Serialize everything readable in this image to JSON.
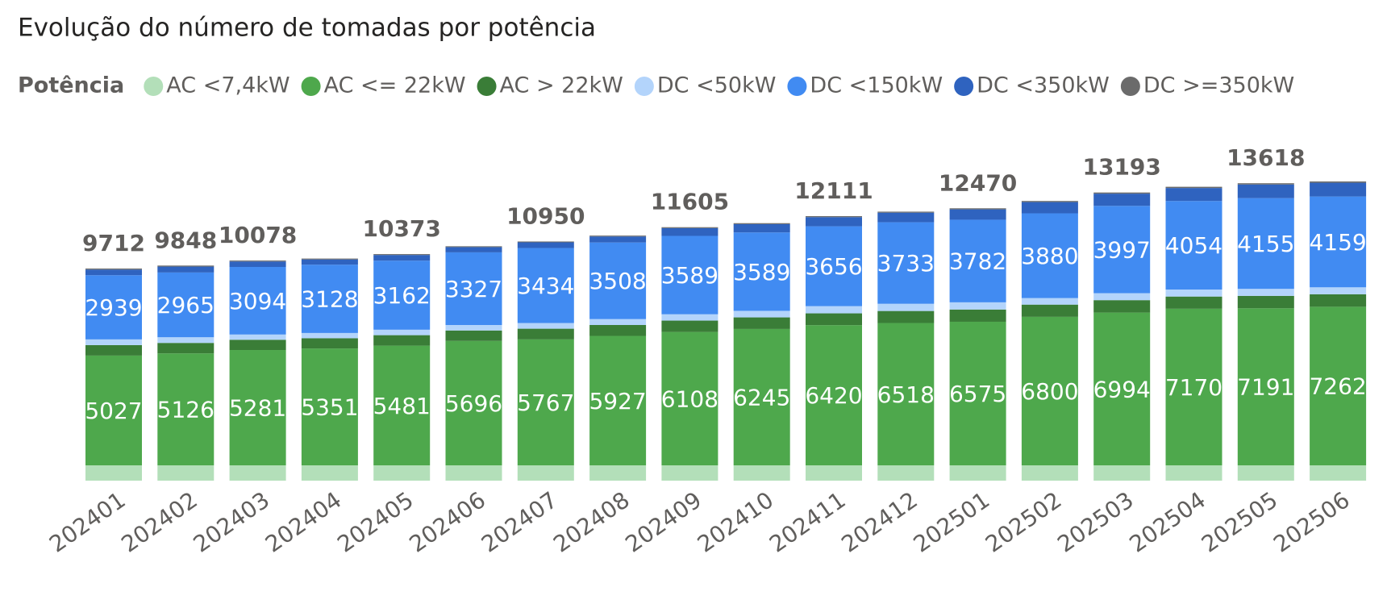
{
  "chart_data": {
    "type": "stacked_bar",
    "title": "Evolução do número de tomadas por potência",
    "legend_title": "Potência",
    "categories": [
      "202401",
      "202402",
      "202403",
      "202404",
      "202405",
      "202406",
      "202407",
      "202408",
      "202409",
      "202410",
      "202411",
      "202412",
      "202501",
      "202502",
      "202503",
      "202504",
      "202505",
      "202506"
    ],
    "series": [
      {
        "name": "AC <7,4kW",
        "color": "#b3dfb9",
        "show_values": false,
        "values": [
          700,
          700,
          700,
          700,
          700,
          700,
          700,
          700,
          700,
          700,
          700,
          700,
          700,
          700,
          700,
          700,
          700,
          700
        ]
      },
      {
        "name": "AC <= 22kW",
        "color": "#4ea84c",
        "show_values": true,
        "values": [
          5027,
          5126,
          5281,
          5351,
          5481,
          5696,
          5767,
          5927,
          6108,
          6245,
          6420,
          6518,
          6575,
          6800,
          6994,
          7170,
          7191,
          7262
        ]
      },
      {
        "name": "AC > 22kW",
        "color": "#3a7d37",
        "show_values": false,
        "values": [
          480,
          480,
          470,
          470,
          480,
          480,
          490,
          500,
          520,
          530,
          540,
          550,
          560,
          560,
          570,
          560,
          570,
          570
        ]
      },
      {
        "name": "DC <50kW",
        "color": "#b3d4fb",
        "show_values": false,
        "values": [
          260,
          260,
          240,
          240,
          250,
          250,
          260,
          270,
          290,
          300,
          330,
          330,
          330,
          300,
          320,
          320,
          320,
          320
        ]
      },
      {
        "name": "DC <150kW",
        "color": "#418bf2",
        "show_values": true,
        "values": [
          2939,
          2965,
          3094,
          3128,
          3162,
          3327,
          3434,
          3508,
          3589,
          3589,
          3656,
          3733,
          3782,
          3880,
          3997,
          4054,
          4155,
          4159
        ]
      },
      {
        "name": "DC <350kW",
        "color": "#2f63bf",
        "show_values": false,
        "values": [
          260,
          270,
          250,
          240,
          260,
          240,
          260,
          275,
          355,
          380,
          420,
          440,
          475,
          515,
          560,
          595,
          625,
          630
        ]
      },
      {
        "name": "DC >=350kW",
        "color": "#6b6b6b",
        "show_values": false,
        "values": [
          46,
          47,
          43,
          40,
          40,
          39,
          39,
          40,
          43,
          45,
          45,
          46,
          48,
          50,
          52,
          56,
          57,
          58
        ]
      }
    ],
    "totals": [
      9712,
      9848,
      10078,
      null,
      10373,
      null,
      10950,
      null,
      11605,
      null,
      12111,
      null,
      12470,
      null,
      13193,
      null,
      13618,
      null
    ]
  }
}
